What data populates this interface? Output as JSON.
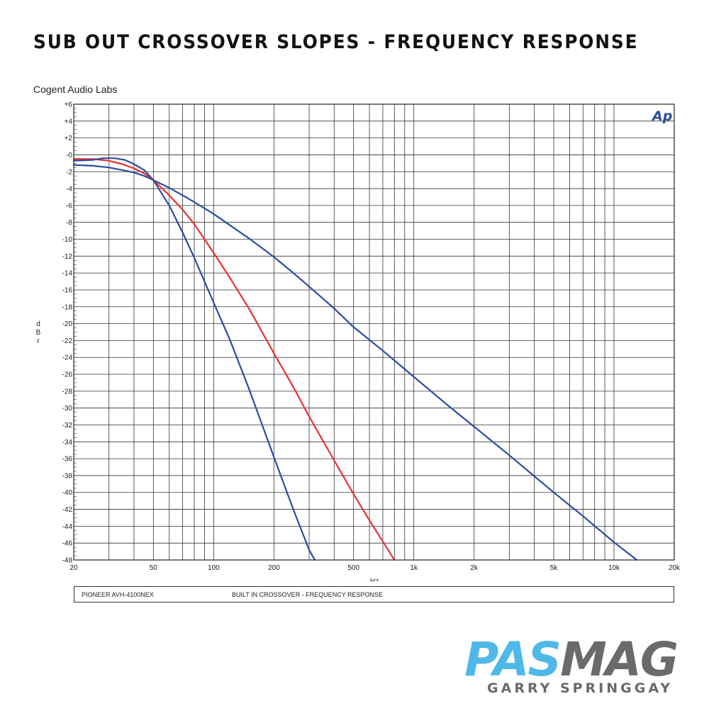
{
  "title": "SUB OUT CROSSOVER SLOPES - FREQUENCY RESPONSE",
  "lab": "Cogent Audio Labs",
  "footer": {
    "left": "PIONEER AVH-4100NEX",
    "right": "BUILT IN CROSSOVER  -  FREQUENCY RESPONSE"
  },
  "branding": {
    "ap_mark": "Ap",
    "logo_part1": "PAS",
    "logo_part2": "MAG",
    "credit": "GARRY SPRINGGAY",
    "logo_colors": {
      "pas": "#4fb8e8",
      "mag": "#6a6a6a"
    }
  },
  "chart_data": {
    "type": "line",
    "title": "",
    "xlabel": "Hz",
    "ylabel": "dBr",
    "x_scale": "log",
    "xlim": [
      20,
      20000
    ],
    "ylim": [
      -48,
      6
    ],
    "grid": true,
    "x_tick_labels": [
      {
        "v": 20,
        "t": "20"
      },
      {
        "v": 50,
        "t": "50"
      },
      {
        "v": 100,
        "t": "100"
      },
      {
        "v": 200,
        "t": "200"
      },
      {
        "v": 500,
        "t": "500"
      },
      {
        "v": 1000,
        "t": "1k"
      },
      {
        "v": 2000,
        "t": "2k"
      },
      {
        "v": 5000,
        "t": "5k"
      },
      {
        "v": 10000,
        "t": "10k"
      },
      {
        "v": 20000,
        "t": "20k"
      }
    ],
    "y_tick_labels": [
      "+6",
      "+4",
      "+2",
      "-0",
      "-2",
      "-4",
      "-6",
      "-8",
      "-10",
      "-12",
      "-14",
      "-16",
      "-18",
      "-20",
      "-22",
      "-24",
      "-26",
      "-28",
      "-30",
      "-32",
      "-34",
      "-36",
      "-38",
      "-40",
      "-42",
      "-44",
      "-46",
      "-48"
    ],
    "series": [
      {
        "color": "#2b4da0",
        "x": [
          20,
          25,
          30,
          35,
          40,
          45,
          50,
          60,
          70,
          80,
          100,
          120,
          150,
          200,
          250,
          300,
          400,
          500,
          700,
          1000,
          1500,
          2000,
          3000,
          5000,
          7000,
          10000,
          13000
        ],
        "y": [
          -1.2,
          -1.3,
          -1.5,
          -1.8,
          -2.1,
          -2.5,
          -3.0,
          -3.9,
          -4.8,
          -5.6,
          -7.0,
          -8.3,
          -9.9,
          -12.1,
          -14.0,
          -15.6,
          -18.2,
          -20.4,
          -23.2,
          -26.3,
          -29.8,
          -32.2,
          -35.6,
          -40.0,
          -42.8,
          -45.9,
          -48.0
        ]
      },
      {
        "color": "#e8322f",
        "x": [
          20,
          25,
          30,
          35,
          40,
          45,
          50,
          60,
          70,
          80,
          100,
          120,
          150,
          200,
          250,
          300,
          400,
          500,
          600,
          700,
          800
        ],
        "y": [
          -0.5,
          -0.5,
          -0.7,
          -1.1,
          -1.6,
          -2.2,
          -3.0,
          -4.8,
          -6.5,
          -8.2,
          -11.6,
          -14.5,
          -18.2,
          -23.5,
          -27.5,
          -31.0,
          -36.2,
          -40.2,
          -43.3,
          -45.8,
          -48.0
        ]
      },
      {
        "color": "#2b4da0",
        "x": [
          20,
          25,
          28,
          32,
          36,
          40,
          45,
          50,
          60,
          70,
          80,
          100,
          120,
          150,
          200,
          250,
          300,
          320
        ],
        "y": [
          -0.7,
          -0.6,
          -0.4,
          -0.4,
          -0.6,
          -1.1,
          -1.8,
          -3.0,
          -6.0,
          -9.2,
          -12.2,
          -17.5,
          -21.8,
          -27.7,
          -35.8,
          -42.0,
          -46.8,
          -48.0
        ]
      }
    ]
  }
}
